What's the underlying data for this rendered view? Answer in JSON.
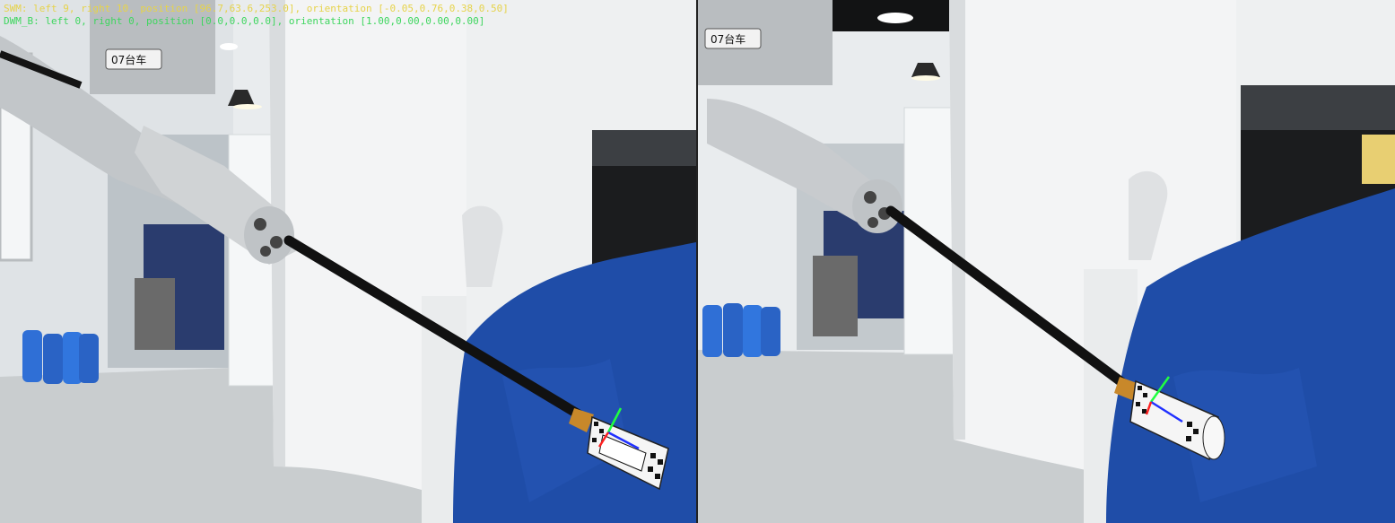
{
  "overlay": {
    "swm_line": "SWM: left 9, right 10, position [96.7,63.6,253.0], orientation [-0.05,0.76,0.38,0.50]",
    "dwm_line": "DWM_B: left 0, right 0, position [0.0,0.0,0.0], orientation [1.00,0.00,0.00,0.00]"
  },
  "robot": {
    "cart_label": "07台车"
  },
  "colors": {
    "swm_text": "#e6d34a",
    "dwm_text": "#3fd65f",
    "axis_x": "#ff2020",
    "axis_y": "#20ff40",
    "axis_z": "#2030ff",
    "drape_blue": "#1f4da8",
    "tool_shaft": "#111111"
  },
  "icons": [
    "tool-pose-axes-icon",
    "fiducial-marker-icon"
  ]
}
